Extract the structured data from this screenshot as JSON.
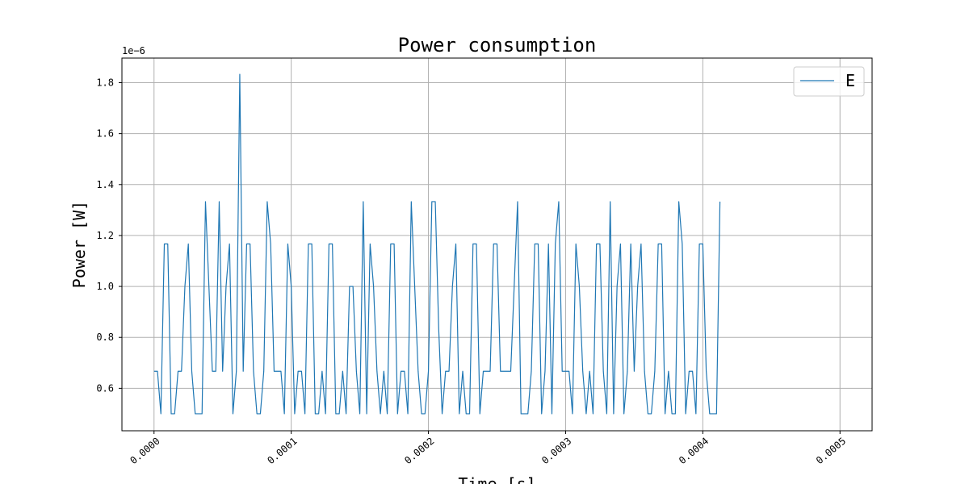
{
  "chart_data": {
    "type": "line",
    "title": "Power consumption",
    "xlabel": "Time [s]",
    "ylabel": "Power [W]",
    "y_multiplier_label": "1e−6",
    "xlim": [
      -2.34e-05,
      0.0005234
    ],
    "ylim": [
      0.4333,
      1.8966
    ],
    "x_ticks": [
      0.0,
      0.0001,
      0.0002,
      0.0003,
      0.0004,
      0.0005
    ],
    "x_tick_labels": [
      "0.0000",
      "0.0001",
      "0.0002",
      "0.0003",
      "0.0004",
      "0.0005"
    ],
    "y_ticks": [
      0.6,
      0.8,
      1.0,
      1.2,
      1.4,
      1.6,
      1.8
    ],
    "y_tick_labels": [
      "0.6",
      "0.8",
      "1.0",
      "1.2",
      "1.4",
      "1.6",
      "1.8"
    ],
    "grid": true,
    "legend_position": "top-right",
    "series": [
      {
        "name": "E",
        "color": "#1f77b4",
        "x_start": 0.0,
        "x_step": 2.5e-06,
        "values": [
          0.667,
          0.667,
          0.5,
          1.167,
          1.167,
          0.5,
          0.5,
          0.667,
          0.667,
          1.0,
          1.167,
          0.667,
          0.5,
          0.5,
          0.5,
          1.333,
          1.0,
          0.667,
          0.667,
          1.333,
          0.667,
          1.0,
          1.167,
          0.5,
          0.667,
          1.833,
          0.667,
          1.167,
          1.167,
          0.667,
          0.5,
          0.5,
          0.667,
          1.333,
          1.167,
          0.667,
          0.667,
          0.667,
          0.5,
          1.167,
          1.0,
          0.5,
          0.667,
          0.667,
          0.5,
          1.167,
          1.167,
          0.5,
          0.5,
          0.667,
          0.5,
          1.167,
          1.167,
          0.5,
          0.5,
          0.667,
          0.5,
          1.0,
          1.0,
          0.667,
          0.5,
          1.333,
          0.5,
          1.167,
          1.0,
          0.667,
          0.5,
          0.667,
          0.5,
          1.167,
          1.167,
          0.5,
          0.667,
          0.667,
          0.5,
          1.333,
          1.0,
          0.667,
          0.5,
          0.5,
          0.667,
          1.333,
          1.333,
          0.833,
          0.5,
          0.667,
          0.667,
          1.0,
          1.167,
          0.5,
          0.667,
          0.5,
          0.5,
          1.167,
          1.167,
          0.5,
          0.667,
          0.667,
          0.667,
          1.167,
          1.167,
          0.667,
          0.667,
          0.667,
          0.667,
          1.0,
          1.333,
          0.5,
          0.5,
          0.5,
          0.667,
          1.167,
          1.167,
          0.5,
          0.667,
          1.167,
          0.5,
          1.167,
          1.333,
          0.667,
          0.667,
          0.667,
          0.5,
          1.167,
          1.0,
          0.667,
          0.5,
          0.667,
          0.5,
          1.167,
          1.167,
          0.667,
          0.5,
          1.333,
          0.5,
          1.0,
          1.167,
          0.5,
          0.667,
          1.167,
          0.667,
          1.0,
          1.167,
          0.667,
          0.5,
          0.5,
          0.667,
          1.167,
          1.167,
          0.5,
          0.667,
          0.5,
          0.5,
          1.333,
          1.167,
          0.5,
          0.667,
          0.667,
          0.5,
          1.167,
          1.167,
          0.667,
          0.5,
          0.5,
          0.5,
          1.333
        ]
      }
    ]
  }
}
